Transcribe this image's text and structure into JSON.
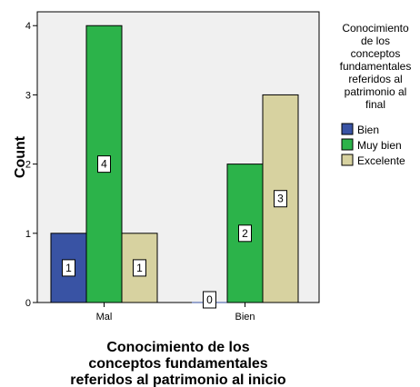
{
  "chart_data": {
    "type": "bar",
    "categories": [
      "Mal",
      "Bien"
    ],
    "series": [
      {
        "name": "Bien",
        "values": [
          1,
          0
        ],
        "color": "#3953a4"
      },
      {
        "name": "Muy bien",
        "values": [
          4,
          2
        ],
        "color": "#2cb34a"
      },
      {
        "name": "Excelente",
        "values": [
          1,
          3
        ],
        "color": "#d7d2a0"
      }
    ],
    "ylabel": "Count",
    "xlabel_lines": [
      "Conocimiento de los",
      "conceptos fundamentales",
      "referidos al patrimonio al inicio"
    ],
    "legend_title_lines": [
      "Conocimiento",
      "de los",
      "conceptos",
      "fundamentales",
      "referidos al",
      "patrimonio al",
      "final"
    ],
    "yticks": [
      0,
      1,
      2,
      3,
      4
    ],
    "ylim": [
      0,
      4.2
    ],
    "plot_background": "#f0f0f0",
    "legend_position": "right",
    "grid": false
  }
}
